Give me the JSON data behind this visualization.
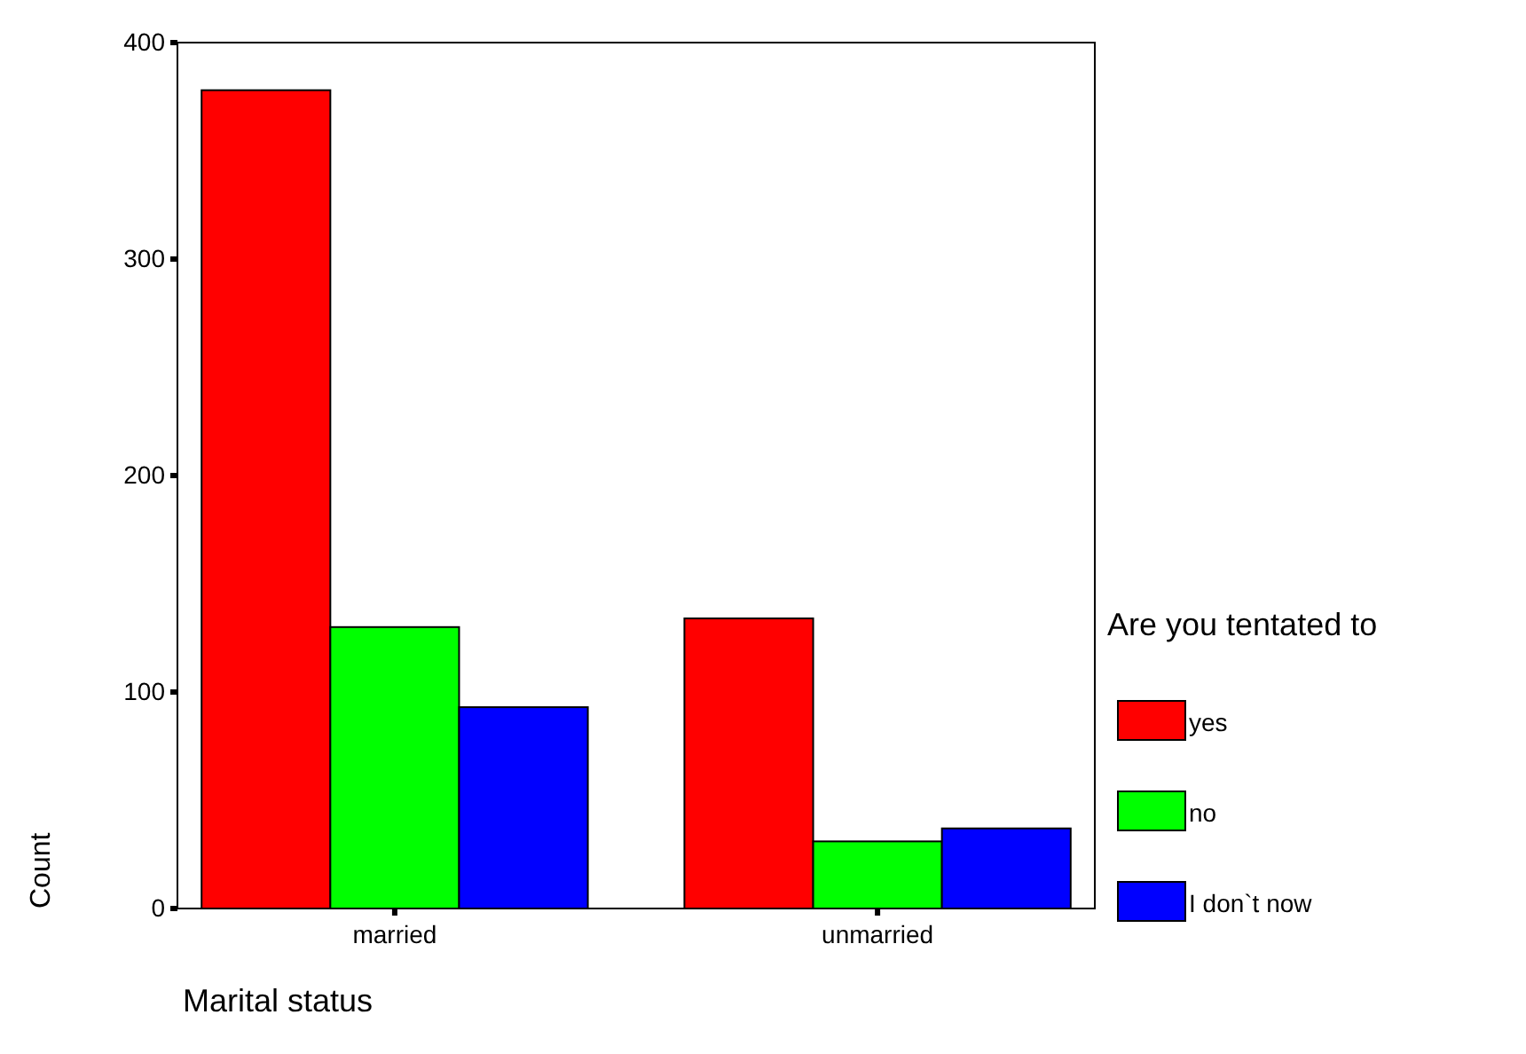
{
  "chart_data": {
    "type": "bar",
    "xlabel": "Marital status",
    "ylabel": "Count",
    "legend_title": "Are you tentated to",
    "categories": [
      "married",
      "unmarried"
    ],
    "series": [
      {
        "name": "yes",
        "color": "#ff0000",
        "values": [
          378,
          134
        ]
      },
      {
        "name": "no",
        "color": "#00ff00",
        "values": [
          130,
          31
        ]
      },
      {
        "name": "I don`t now",
        "color": "#0000ff",
        "values": [
          93,
          37
        ]
      }
    ],
    "ylim": [
      0,
      400
    ],
    "yticks": [
      0,
      100,
      200,
      300,
      400
    ],
    "grid": false,
    "legend": "right"
  }
}
